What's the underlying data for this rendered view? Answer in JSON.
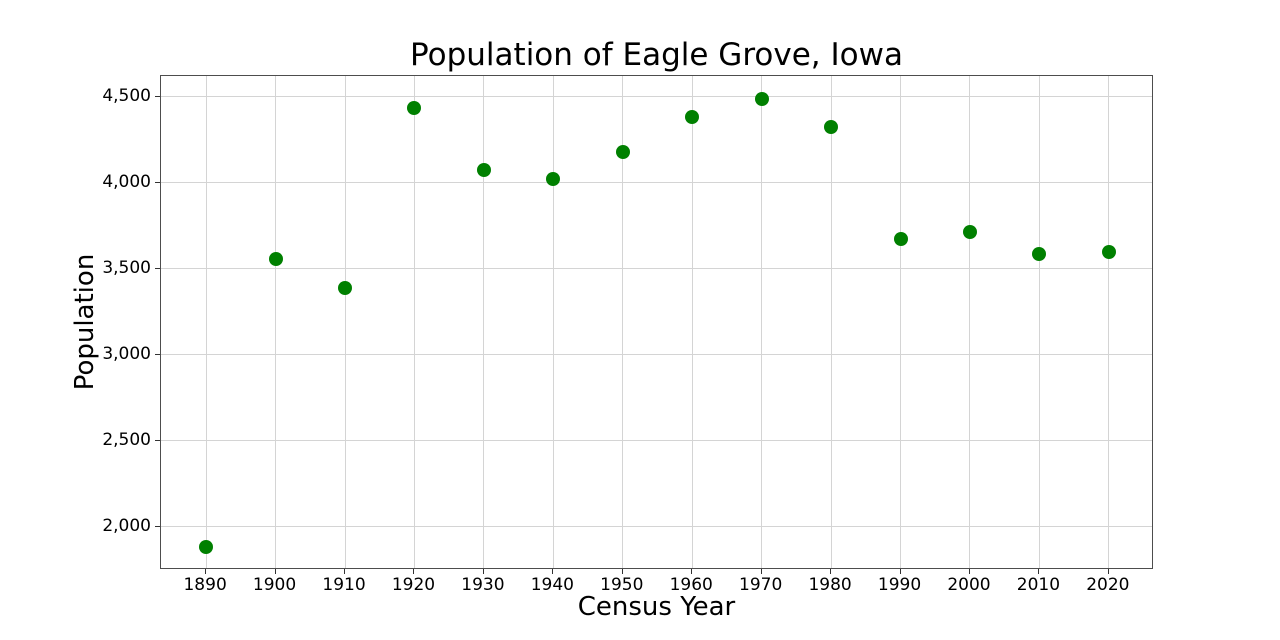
{
  "chart_data": {
    "type": "scatter",
    "title": "Population of Eagle Grove, Iowa",
    "xlabel": "Census Year",
    "ylabel": "Population",
    "x": [
      1890,
      1900,
      1910,
      1920,
      1930,
      1940,
      1950,
      1960,
      1970,
      1980,
      1990,
      2000,
      2010,
      2020
    ],
    "y": [
      1881,
      3556,
      3387,
      4433,
      4071,
      4024,
      4176,
      4381,
      4489,
      4324,
      3671,
      3712,
      3583,
      3599
    ],
    "xticks": [
      1890,
      1900,
      1910,
      1920,
      1930,
      1940,
      1950,
      1960,
      1970,
      1980,
      1990,
      2000,
      2010,
      2020
    ],
    "yticks": [
      2000,
      2500,
      3000,
      3500,
      4000,
      4500
    ],
    "ytick_labels": [
      "2,000",
      "2,500",
      "3,000",
      "3,500",
      "4,000",
      "4,500"
    ],
    "xlim": [
      1883.5,
      2026.5
    ],
    "ylim": [
      1750,
      4620
    ],
    "grid": true,
    "legend": "none",
    "marker_color": "#008000",
    "grid_color": "#d4d4d4",
    "axis_color": "#4d4d4d",
    "tick_color": "#333333",
    "text_color": "#000000",
    "background": "#ffffff"
  }
}
